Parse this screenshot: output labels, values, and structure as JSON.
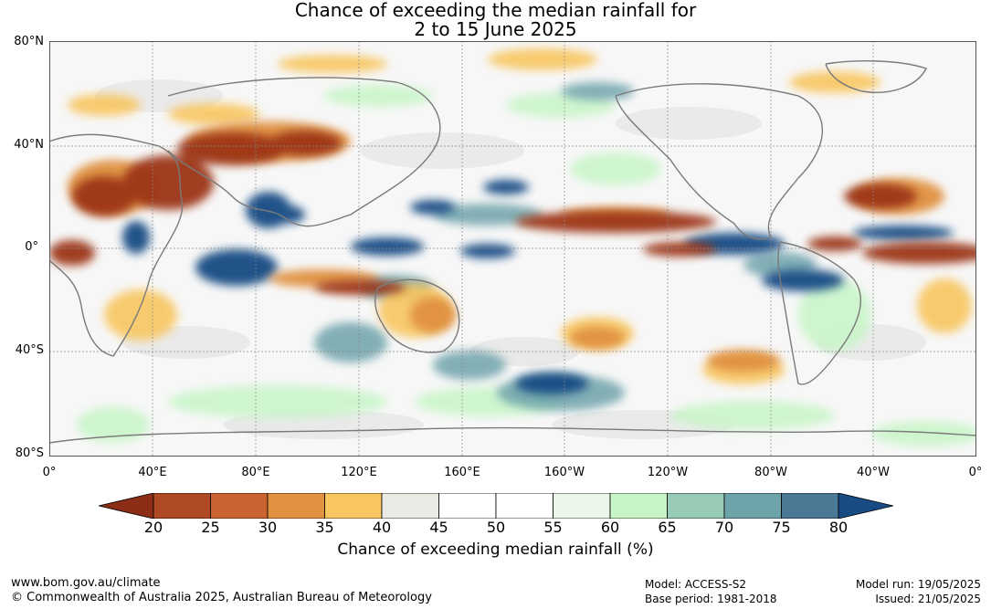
{
  "title": {
    "line1": "Chance of exceeding the median rainfall for",
    "line2": "2 to 15 June 2025"
  },
  "axes": {
    "lat_labels": [
      "80°N",
      "40°N",
      "0°",
      "40°S",
      "80°S"
    ],
    "lon_labels": [
      "0°",
      "40°E",
      "80°E",
      "120°E",
      "160°E",
      "160°W",
      "120°W",
      "80°W",
      "40°W",
      "0°"
    ]
  },
  "colorbar": {
    "ticks": [
      "20",
      "25",
      "30",
      "35",
      "40",
      "45",
      "50",
      "55",
      "60",
      "65",
      "70",
      "75",
      "80"
    ],
    "colors": [
      "#8c2d17",
      "#b04a25",
      "#c96330",
      "#e0913f",
      "#f8c661",
      "#ebe9e4",
      "#ffffff",
      "#ffffff",
      "#eaf6ea",
      "#c7f5c7",
      "#98cbb5",
      "#6ea3aa",
      "#4a7895",
      "#184b84"
    ],
    "label": "Chance of exceeding median rainfall (%)"
  },
  "footer": {
    "website": "www.bom.gov.au/climate",
    "copyright": "© Commonwealth of Australia 2025, Australian Bureau of Meteorology",
    "model": "Model: ACCESS-S2",
    "base_period": "Base period: 1981-2018",
    "model_run": "Model run: 19/05/2025",
    "issued": "Issued: 21/05/2025"
  }
}
